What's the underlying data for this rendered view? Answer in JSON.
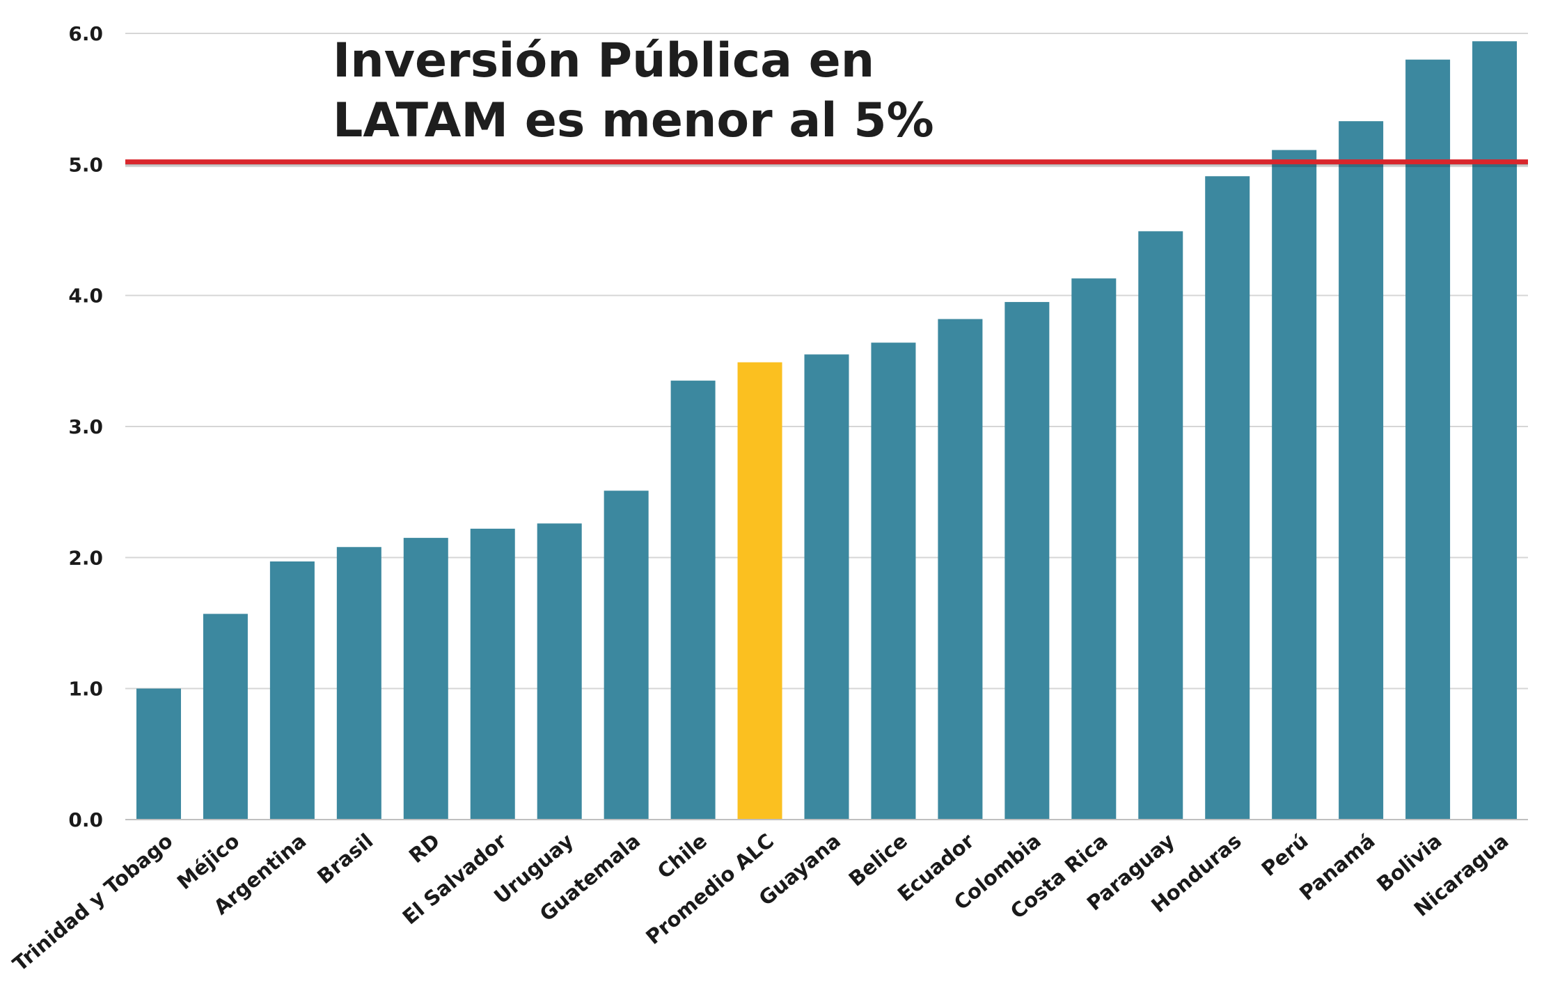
{
  "chart_data": {
    "type": "bar",
    "title": [
      "Inversión Pública en",
      "LATAM es menor al 5%"
    ],
    "xlabel": "",
    "ylabel": "",
    "ylim": [
      0,
      6
    ],
    "yticks": [
      "0.0",
      "1.0",
      "2.0",
      "3.0",
      "4.0",
      "5.0",
      "6.0"
    ],
    "grid": true,
    "legend": "none",
    "categories": [
      "Trinidad y Tobago",
      "Méjico",
      "Argentina",
      "Brasil",
      "RD",
      "El Salvador",
      "Uruguay",
      "Guatemala",
      "Chile",
      "Promedio ALC",
      "Guayana",
      "Belice",
      "Ecuador",
      "Colombia",
      "Costa Rica",
      "Paraguay",
      "Honduras",
      "Perú",
      "Panamá",
      "Bolivia",
      "Nicaragua"
    ],
    "values": [
      1.0,
      1.57,
      1.97,
      2.08,
      2.15,
      2.22,
      2.26,
      2.51,
      3.35,
      3.49,
      3.55,
      3.64,
      3.82,
      3.95,
      4.13,
      4.49,
      4.91,
      5.11,
      5.33,
      5.8,
      5.94
    ],
    "highlight_category": "Promedio ALC",
    "reference_line": {
      "value": 5.02,
      "color": "#d9262c"
    },
    "colors": {
      "bar": "#3c889f",
      "highlight": "#fbc020",
      "grid": "#d6d6d6",
      "axis": "#bfbfbf"
    }
  }
}
